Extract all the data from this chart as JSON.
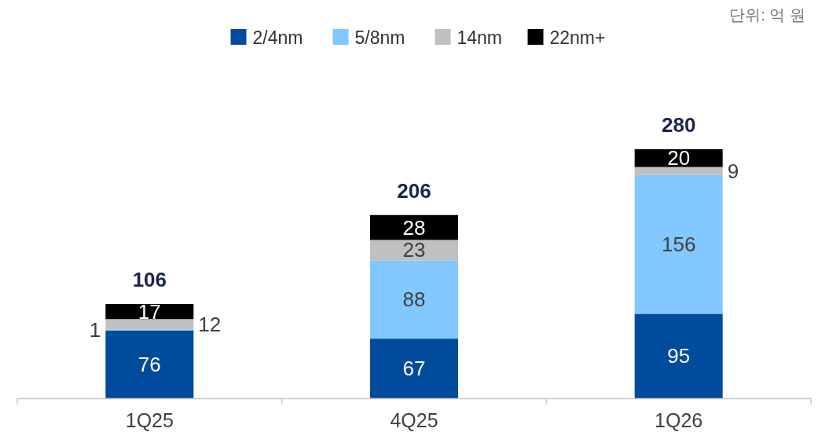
{
  "chart_data": {
    "type": "bar",
    "stacked": true,
    "categories": [
      "1Q25",
      "4Q25",
      "1Q26"
    ],
    "series": [
      {
        "name": "2/4nm",
        "color": "#004b9b",
        "values": [
          76,
          67,
          95
        ]
      },
      {
        "name": "5/8nm",
        "color": "#80c8ff",
        "values": [
          1,
          88,
          156
        ]
      },
      {
        "name": "14nm",
        "color": "#c0c0c0",
        "values": [
          12,
          23,
          9
        ]
      },
      {
        "name": "22nm+",
        "color": "#000000",
        "values": [
          17,
          28,
          20
        ]
      }
    ],
    "data_labels": true,
    "totals": [
      "106",
      "206",
      "280"
    ],
    "legend": "top",
    "ylim": [
      0,
      280
    ],
    "annotations": [
      "단위: 억 원"
    ]
  }
}
